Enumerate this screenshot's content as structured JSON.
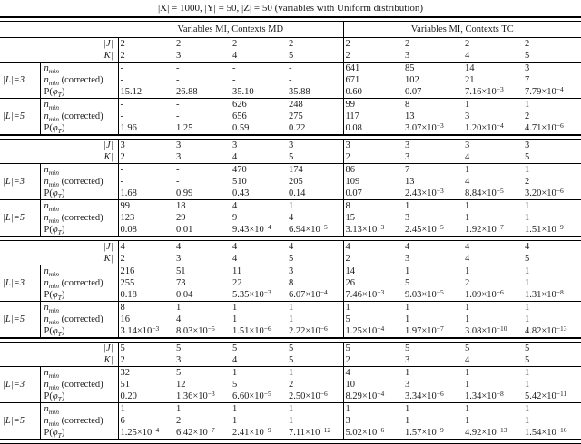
{
  "title": "|X| = 1000, |Y| = 50, |Z| = 50 (variables with Uniform distribution)",
  "group_headers": [
    "Variables MI, Contexts MD",
    "Variables MI, Contexts TC"
  ],
  "labels": {
    "J": "|J|",
    "K": "|K|",
    "L3": "|L|=3",
    "L5": "|L|=5",
    "rows": [
      {
        "pre": "",
        "it": "n",
        "sub": "min",
        "post": ""
      },
      {
        "pre": "",
        "it": "n",
        "sub": "min",
        "post": " (corrected)"
      },
      {
        "pre": "P(",
        "it": "φ",
        "sub": "T",
        "post": ")"
      }
    ]
  },
  "sections": [
    {
      "J": [
        "2",
        "2",
        "2",
        "2",
        "2",
        "2",
        "2",
        "2"
      ],
      "K": [
        "2",
        "3",
        "4",
        "5",
        "2",
        "3",
        "4",
        "5"
      ],
      "L3": {
        "nmin": [
          "-",
          "-",
          "-",
          "-",
          "641",
          "85",
          "14",
          "3"
        ],
        "nminc": [
          "-",
          "-",
          "-",
          "-",
          "671",
          "102",
          "21",
          "7"
        ],
        "p": [
          "15.12",
          "26.88",
          "35.10",
          "35.88",
          "0.60",
          "0.07",
          "7.16×10⁻³",
          "7.79×10⁻⁴"
        ]
      },
      "L5": {
        "nmin": [
          "-",
          "-",
          "626",
          "248",
          "99",
          "8",
          "1",
          "1"
        ],
        "nminc": [
          "-",
          "-",
          "656",
          "275",
          "117",
          "13",
          "3",
          "2"
        ],
        "p": [
          "1.96",
          "1.25",
          "0.59",
          "0.22",
          "0.08",
          "3.07×10⁻³",
          "1.20×10⁻⁴",
          "4.71×10⁻⁶"
        ]
      }
    },
    {
      "J": [
        "3",
        "3",
        "3",
        "3",
        "3",
        "3",
        "3",
        "3"
      ],
      "K": [
        "2",
        "3",
        "4",
        "5",
        "2",
        "3",
        "4",
        "5"
      ],
      "L3": {
        "nmin": [
          "-",
          "-",
          "470",
          "174",
          "86",
          "7",
          "1",
          "1"
        ],
        "nminc": [
          "-",
          "-",
          "510",
          "205",
          "109",
          "13",
          "4",
          "2"
        ],
        "p": [
          "1.68",
          "0.99",
          "0.43",
          "0.14",
          "0.07",
          "2.43×10⁻³",
          "8.84×10⁻⁵",
          "3.20×10⁻⁶"
        ]
      },
      "L5": {
        "nmin": [
          "99",
          "18",
          "4",
          "1",
          "8",
          "1",
          "1",
          "1"
        ],
        "nminc": [
          "123",
          "29",
          "9",
          "4",
          "15",
          "3",
          "1",
          "1"
        ],
        "p": [
          "0.08",
          "0.01",
          "9.43×10⁻⁴",
          "6.94×10⁻⁵",
          "3.13×10⁻³",
          "2.45×10⁻⁵",
          "1.92×10⁻⁷",
          "1.51×10⁻⁹"
        ]
      }
    },
    {
      "J": [
        "4",
        "4",
        "4",
        "4",
        "4",
        "4",
        "4",
        "4"
      ],
      "K": [
        "2",
        "3",
        "4",
        "5",
        "2",
        "3",
        "4",
        "5"
      ],
      "L3": {
        "nmin": [
          "216",
          "51",
          "11",
          "3",
          "14",
          "1",
          "1",
          "1"
        ],
        "nminc": [
          "255",
          "73",
          "22",
          "8",
          "26",
          "5",
          "2",
          "1"
        ],
        "p": [
          "0.18",
          "0.04",
          "5.35×10⁻³",
          "6.07×10⁻⁴",
          "7.46×10⁻³",
          "9.03×10⁻⁵",
          "1.09×10⁻⁶",
          "1.31×10⁻⁸"
        ]
      },
      "L5": {
        "nmin": [
          "8",
          "1",
          "1",
          "1",
          "1",
          "1",
          "1",
          "1"
        ],
        "nminc": [
          "16",
          "4",
          "1",
          "1",
          "5",
          "1",
          "1",
          "1"
        ],
        "p": [
          "3.14×10⁻³",
          "8.03×10⁻⁵",
          "1.51×10⁻⁶",
          "2.22×10⁻⁶",
          "1.25×10⁻⁴",
          "1.97×10⁻⁷",
          "3.08×10⁻¹⁰",
          "4.82×10⁻¹³"
        ]
      }
    },
    {
      "J": [
        "5",
        "5",
        "5",
        "5",
        "5",
        "5",
        "5",
        "5"
      ],
      "K": [
        "2",
        "3",
        "4",
        "5",
        "2",
        "3",
        "4",
        "5"
      ],
      "L3": {
        "nmin": [
          "32",
          "5",
          "1",
          "1",
          "4",
          "1",
          "1",
          "1"
        ],
        "nminc": [
          "51",
          "12",
          "5",
          "2",
          "10",
          "3",
          "1",
          "1"
        ],
        "p": [
          "0.20",
          "1.36×10⁻³",
          "6.60×10⁻⁵",
          "2.50×10⁻⁶",
          "8.29×10⁻⁴",
          "3.34×10⁻⁶",
          "1.34×10⁻⁸",
          "5.42×10⁻¹¹"
        ]
      },
      "L5": {
        "nmin": [
          "1",
          "1",
          "1",
          "1",
          "1",
          "1",
          "1",
          "1"
        ],
        "nminc": [
          "6",
          "2",
          "1",
          "1",
          "3",
          "1",
          "1",
          "1"
        ],
        "p": [
          "1.25×10⁻⁴",
          "6.42×10⁻⁷",
          "2.41×10⁻⁹",
          "7.11×10⁻¹²",
          "5.02×10⁻⁶",
          "1.57×10⁻⁹",
          "4.92×10⁻¹³",
          "1.54×10⁻¹⁶"
        ]
      }
    }
  ]
}
